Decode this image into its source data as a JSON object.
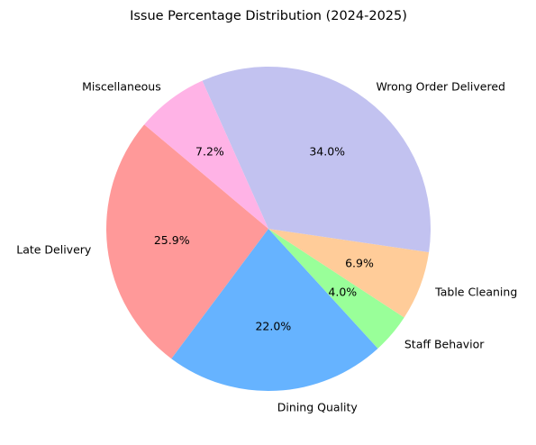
{
  "chart_data": {
    "type": "pie",
    "title": "Issue Percentage Distribution (2024-2025)",
    "start_angle_deg": 140,
    "direction": "counterclockwise",
    "slices": [
      {
        "label": "Late Delivery",
        "value": 25.9,
        "pct_label": "25.9%",
        "color": "#ff9999"
      },
      {
        "label": "Dining Quality",
        "value": 22.0,
        "pct_label": "22.0%",
        "color": "#66b3ff"
      },
      {
        "label": "Staff Behavior",
        "value": 4.0,
        "pct_label": "4.0%",
        "color": "#99ff99"
      },
      {
        "label": "Table Cleaning",
        "value": 6.9,
        "pct_label": "6.9%",
        "color": "#ffcc99"
      },
      {
        "label": "Wrong Order Delivered",
        "value": 34.0,
        "pct_label": "34.0%",
        "color": "#c2c2f0"
      },
      {
        "label": "Miscellaneous",
        "value": 7.2,
        "pct_label": "7.2%",
        "color": "#ffb3e6"
      }
    ]
  }
}
